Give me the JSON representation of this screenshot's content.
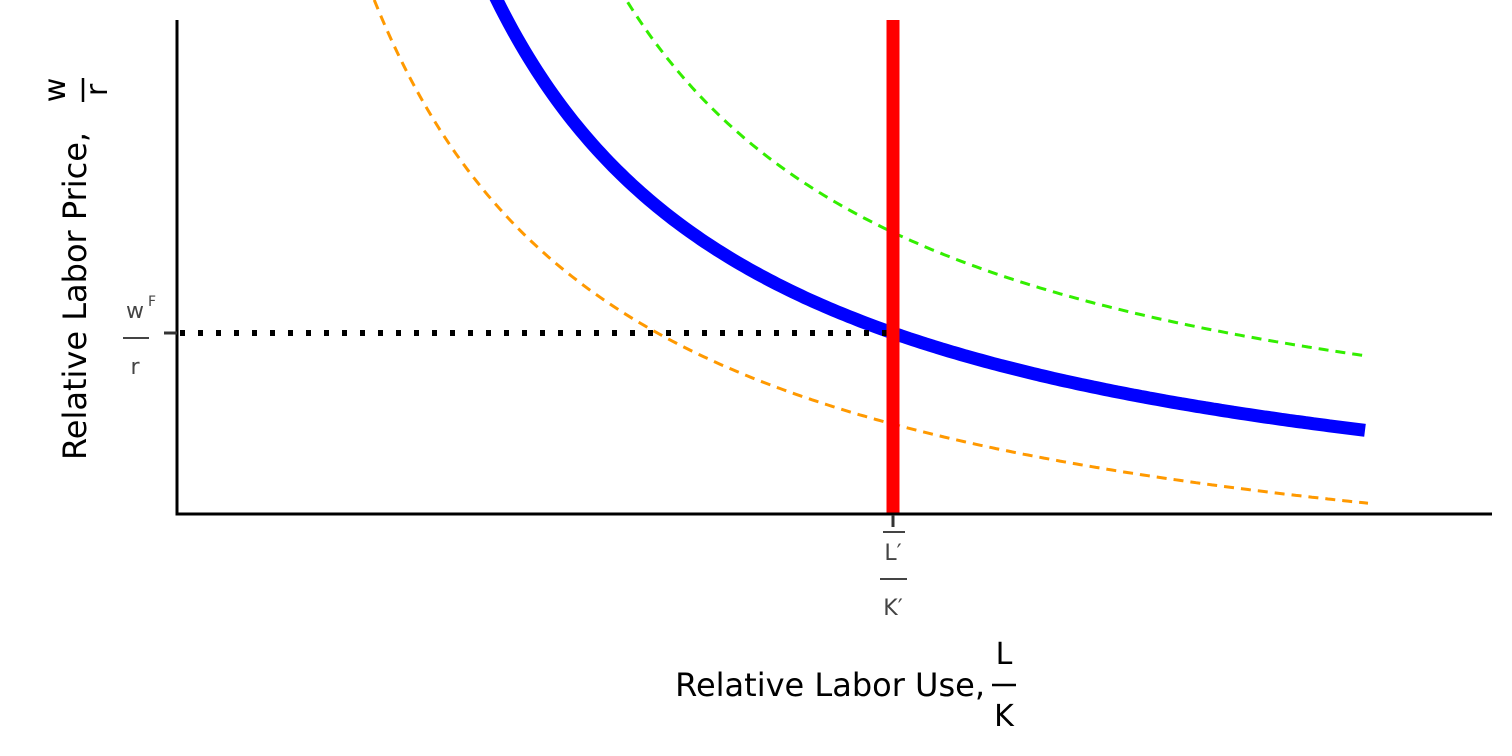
{
  "chart_data": {
    "type": "line",
    "title": "",
    "xlabel": {
      "text": "Relative Labor Use,",
      "frac_num": "L",
      "frac_den": "K"
    },
    "ylabel": {
      "text": "Relative Labor Price,",
      "frac_num": "w",
      "frac_den": "r"
    },
    "x_tick": {
      "num": "L′",
      "den": "K′",
      "num_overline": true
    },
    "y_tick": {
      "num": "w",
      "num_sup": "F",
      "den": "r"
    },
    "vertical_line": {
      "label": "L′/K′",
      "color": "#FF0000"
    },
    "equilibrium_guide": {
      "style": "dotted",
      "color": "#000000"
    },
    "series": [
      {
        "role": "demand",
        "style": "solid",
        "color": "#0000FF",
        "shift": 0
      },
      {
        "role": "demand-decrease",
        "style": "dashed",
        "color": "#FF9900",
        "shift": -1
      },
      {
        "role": "demand-increase",
        "style": "dashed",
        "color": "#33EE00",
        "shift": 1
      }
    ],
    "grid": false,
    "legend": "none"
  }
}
